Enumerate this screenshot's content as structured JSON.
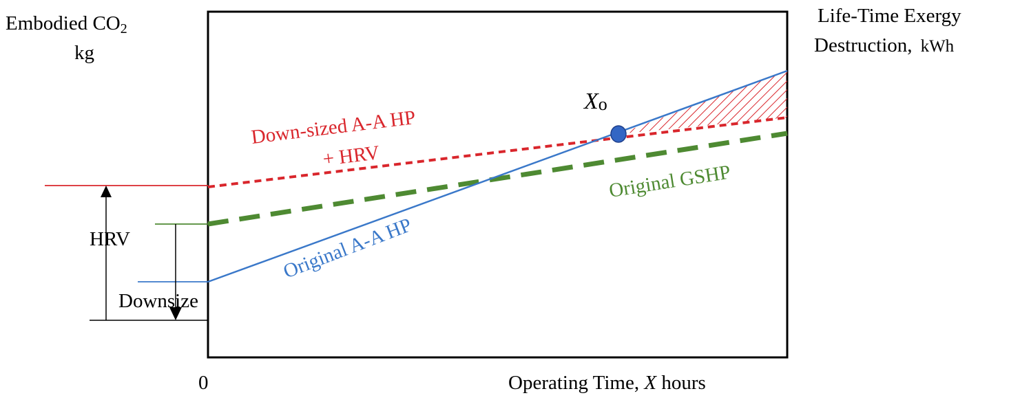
{
  "left_axis": {
    "title_line1": "Embodied CO",
    "title_sub": "2",
    "title_line2": "kg"
  },
  "right_axis": {
    "title_line1": "Life-Time Exergy",
    "title_line2": "Destruction,",
    "title_unit": "kWh"
  },
  "x_axis": {
    "origin_label": "0",
    "title_prefix": "Operating Time, ",
    "title_var": "X",
    "title_suffix": " hours"
  },
  "lines": {
    "downsized_line1": "Down-sized A-A HP",
    "downsized_line2": "+ HRV",
    "gshp": "Original GSHP",
    "original_aahp": "Original A-A HP"
  },
  "annotations": {
    "crossover_var": "X",
    "crossover_sub": "o",
    "hrv": "HRV",
    "downsize": "Downsize"
  },
  "colors": {
    "downsized": "#d9262c",
    "gshp": "#4e8a32",
    "original_aahp": "#3a78c9",
    "marker_fill": "#3366c4",
    "axes": "#000000"
  },
  "chart_data": {
    "type": "line",
    "x_axis_label": "Operating Time, X hours",
    "left_axis_label": "Embodied CO2 kg",
    "right_axis_label": "Life-Time Exergy Destruction, kWh",
    "series": [
      {
        "name": "Down-sized A-A HP + HRV",
        "style": "short-dashed",
        "color": "#d9262c"
      },
      {
        "name": "Original GSHP",
        "style": "long-dashed",
        "color": "#4e8a32"
      },
      {
        "name": "Original A-A HP",
        "style": "solid",
        "color": "#3a78c9"
      }
    ],
    "annotations": [
      "Xo",
      "HRV",
      "Downsize"
    ]
  }
}
